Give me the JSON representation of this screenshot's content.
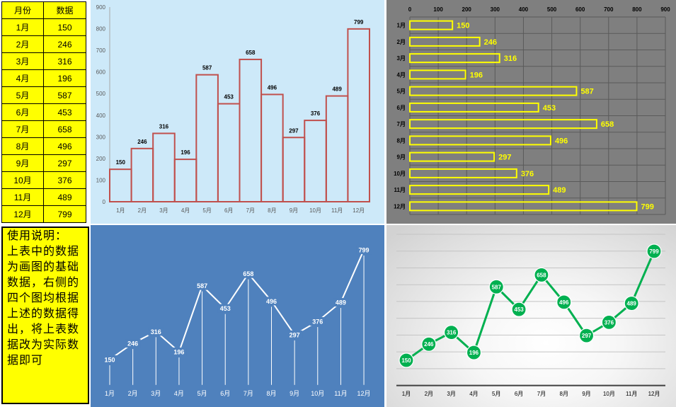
{
  "colors": {
    "cell_fill": "#ffff00"
  },
  "table": {
    "headers": [
      "月份",
      "数据"
    ],
    "rows": [
      [
        "1月",
        150
      ],
      [
        "2月",
        246
      ],
      [
        "3月",
        316
      ],
      [
        "4月",
        196
      ],
      [
        "5月",
        587
      ],
      [
        "6月",
        453
      ],
      [
        "7月",
        658
      ],
      [
        "8月",
        496
      ],
      [
        "9月",
        297
      ],
      [
        "10月",
        376
      ],
      [
        "11月",
        489
      ],
      [
        "12月",
        799
      ]
    ]
  },
  "note": {
    "lines": [
      "使用说明：",
      "上表中的数据",
      "为画图的基础",
      "数据，右侧的",
      "四个图均根据",
      "上述的数据得",
      "出，将上表数",
      "据改为实际数",
      "据即可"
    ]
  },
  "chart_data": [
    {
      "type": "bar",
      "orientation": "vertical",
      "categories": [
        "1月",
        "2月",
        "3月",
        "4月",
        "5月",
        "6月",
        "7月",
        "8月",
        "9月",
        "10月",
        "11月",
        "12月"
      ],
      "values": [
        150,
        246,
        316,
        196,
        587,
        453,
        658,
        496,
        297,
        376,
        489,
        799
      ],
      "ylim": [
        0,
        900
      ],
      "yticks": [
        0,
        100,
        200,
        300,
        400,
        500,
        600,
        700,
        800,
        900
      ],
      "data_labels": true,
      "grid": false,
      "legend": "none",
      "background": "#cde9f9",
      "bar_outline_color": "#c0504d"
    },
    {
      "type": "bar",
      "orientation": "horizontal",
      "categories": [
        "1月",
        "2月",
        "3月",
        "4月",
        "5月",
        "6月",
        "7月",
        "8月",
        "9月",
        "10月",
        "11月",
        "12月"
      ],
      "values": [
        150,
        246,
        316,
        196,
        587,
        453,
        658,
        496,
        297,
        376,
        489,
        799
      ],
      "xlim": [
        0,
        900
      ],
      "xticks": [
        0,
        100,
        200,
        300,
        400,
        500,
        600,
        700,
        800,
        900
      ],
      "value_axis_position": "top",
      "data_labels": true,
      "grid": true,
      "legend": "none",
      "background": "#7f7f7f",
      "grid_color": "#5a5a5a",
      "bar_outline_color": "#ffff00",
      "label_color": "#ffff00"
    },
    {
      "type": "line",
      "categories": [
        "1月",
        "2月",
        "3月",
        "4月",
        "5月",
        "6月",
        "7月",
        "8月",
        "9月",
        "10月",
        "11月",
        "12月"
      ],
      "values": [
        150,
        246,
        316,
        196,
        587,
        453,
        658,
        496,
        297,
        376,
        489,
        799
      ],
      "ylim": [
        0,
        900
      ],
      "drop_lines": true,
      "markers": false,
      "data_labels": true,
      "grid": false,
      "legend": "none",
      "background": "#4f81bd",
      "line_color": "#ffffff"
    },
    {
      "type": "line",
      "categories": [
        "1月",
        "2月",
        "3月",
        "4月",
        "5月",
        "6月",
        "7月",
        "8月",
        "9月",
        "10月",
        "11月",
        "12月"
      ],
      "values": [
        150,
        246,
        316,
        196,
        587,
        453,
        658,
        496,
        297,
        376,
        489,
        799
      ],
      "ylim": [
        0,
        900
      ],
      "grid_step": 100,
      "markers": true,
      "data_labels": true,
      "grid": true,
      "legend": "none",
      "line_color": "#00b050",
      "marker_color": "#00b050"
    }
  ]
}
